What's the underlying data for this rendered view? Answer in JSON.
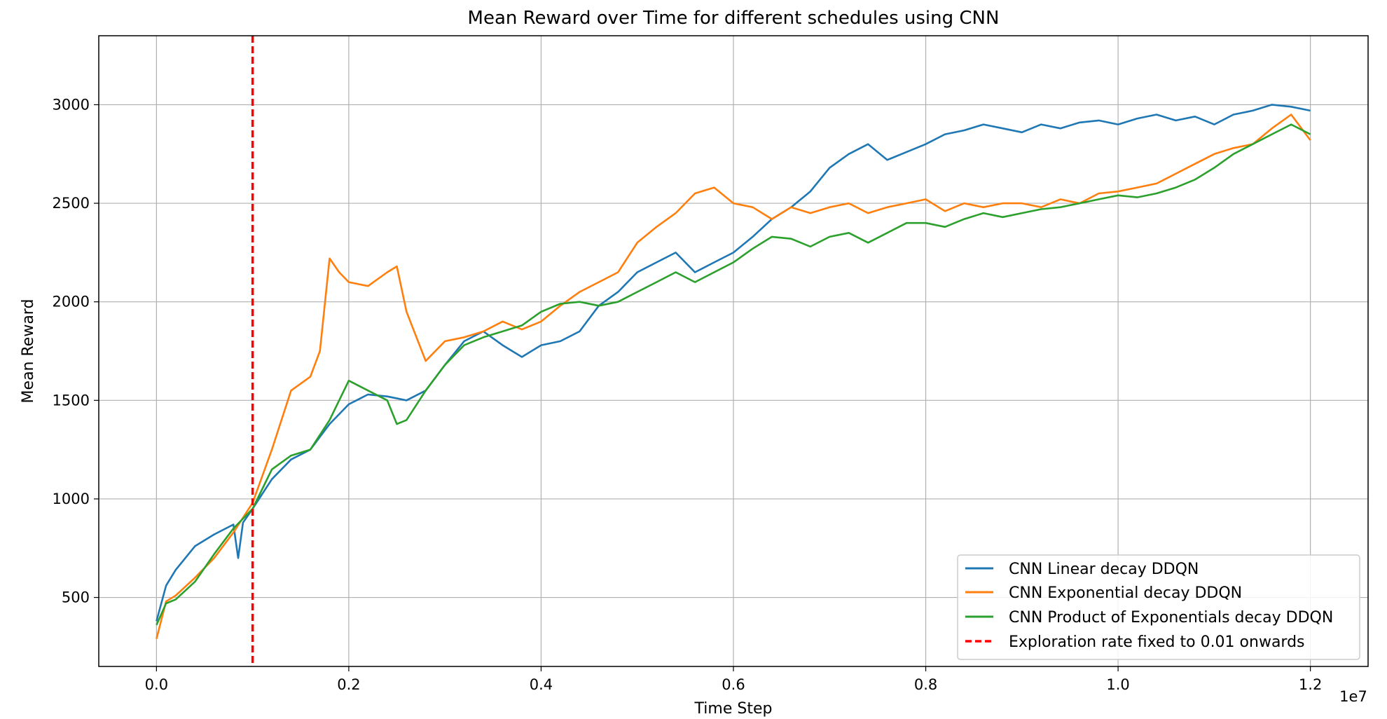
{
  "chart_data": {
    "type": "line",
    "title": "Mean Reward over Time for different schedules using CNN",
    "xlabel": "Time Step",
    "ylabel": "Mean Reward",
    "x_offset_label": "1e7",
    "xlim": [
      -0.06,
      1.26
    ],
    "ylim": [
      150,
      3350
    ],
    "x_ticks": [
      0.0,
      0.2,
      0.4,
      0.6,
      0.8,
      1.0,
      1.2
    ],
    "x_tick_labels": [
      "0.0",
      "0.2",
      "0.4",
      "0.6",
      "0.8",
      "1.0",
      "1.2"
    ],
    "y_ticks": [
      500,
      1000,
      1500,
      2000,
      2500,
      3000
    ],
    "y_tick_labels": [
      "500",
      "1000",
      "1500",
      "2000",
      "2500",
      "3000"
    ],
    "grid": true,
    "legend_position": "lower-right",
    "vline": {
      "x": 0.1,
      "label": "Exploration rate fixed to 0.01 onwards",
      "color": "#ff0000",
      "style": "dashed"
    },
    "series": [
      {
        "name": "CNN Linear decay DDQN",
        "color": "#1f77b4",
        "x": [
          0.0,
          0.01,
          0.02,
          0.04,
          0.06,
          0.08,
          0.085,
          0.09,
          0.1,
          0.12,
          0.14,
          0.16,
          0.18,
          0.2,
          0.22,
          0.24,
          0.26,
          0.28,
          0.3,
          0.32,
          0.34,
          0.36,
          0.38,
          0.4,
          0.42,
          0.44,
          0.46,
          0.48,
          0.5,
          0.52,
          0.54,
          0.56,
          0.58,
          0.6,
          0.62,
          0.64,
          0.66,
          0.68,
          0.7,
          0.72,
          0.74,
          0.76,
          0.78,
          0.8,
          0.82,
          0.84,
          0.86,
          0.88,
          0.9,
          0.92,
          0.94,
          0.96,
          0.98,
          1.0,
          1.02,
          1.04,
          1.06,
          1.08,
          1.1,
          1.12,
          1.14,
          1.16,
          1.18,
          1.2
        ],
        "y": [
          380,
          560,
          640,
          760,
          820,
          870,
          700,
          880,
          950,
          1100,
          1200,
          1250,
          1380,
          1480,
          1530,
          1520,
          1500,
          1550,
          1680,
          1800,
          1850,
          1780,
          1720,
          1780,
          1800,
          1850,
          1980,
          2050,
          2150,
          2200,
          2250,
          2150,
          2200,
          2250,
          2330,
          2420,
          2480,
          2560,
          2680,
          2750,
          2800,
          2720,
          2760,
          2800,
          2850,
          2870,
          2900,
          2880,
          2860,
          2900,
          2880,
          2910,
          2920,
          2900,
          2930,
          2950,
          2920,
          2940,
          2900,
          2950,
          2970,
          3000,
          2990,
          2970
        ]
      },
      {
        "name": "CNN Exponential decay DDQN",
        "color": "#ff7f0e",
        "x": [
          0.0,
          0.01,
          0.02,
          0.04,
          0.06,
          0.08,
          0.1,
          0.12,
          0.14,
          0.16,
          0.17,
          0.18,
          0.19,
          0.2,
          0.22,
          0.24,
          0.25,
          0.26,
          0.28,
          0.3,
          0.32,
          0.34,
          0.36,
          0.38,
          0.4,
          0.42,
          0.44,
          0.46,
          0.48,
          0.5,
          0.52,
          0.54,
          0.56,
          0.58,
          0.6,
          0.62,
          0.64,
          0.66,
          0.68,
          0.7,
          0.72,
          0.74,
          0.76,
          0.78,
          0.8,
          0.82,
          0.84,
          0.86,
          0.88,
          0.9,
          0.92,
          0.94,
          0.96,
          0.98,
          1.0,
          1.02,
          1.04,
          1.06,
          1.08,
          1.1,
          1.12,
          1.14,
          1.16,
          1.18,
          1.2
        ],
        "y": [
          290,
          480,
          510,
          600,
          700,
          830,
          980,
          1250,
          1550,
          1620,
          1750,
          2220,
          2150,
          2100,
          2080,
          2150,
          2180,
          1950,
          1700,
          1800,
          1820,
          1850,
          1900,
          1860,
          1900,
          1980,
          2050,
          2100,
          2150,
          2300,
          2380,
          2450,
          2550,
          2580,
          2500,
          2480,
          2420,
          2480,
          2450,
          2480,
          2500,
          2450,
          2480,
          2500,
          2520,
          2460,
          2500,
          2480,
          2500,
          2500,
          2480,
          2520,
          2500,
          2550,
          2560,
          2580,
          2600,
          2650,
          2700,
          2750,
          2780,
          2800,
          2880,
          2950,
          2820
        ]
      },
      {
        "name": "CNN Product of Exponentials decay DDQN",
        "color": "#2ca02c",
        "x": [
          0.0,
          0.01,
          0.02,
          0.04,
          0.06,
          0.08,
          0.1,
          0.12,
          0.14,
          0.16,
          0.18,
          0.2,
          0.22,
          0.24,
          0.25,
          0.26,
          0.28,
          0.3,
          0.32,
          0.34,
          0.36,
          0.38,
          0.4,
          0.42,
          0.44,
          0.46,
          0.48,
          0.5,
          0.52,
          0.54,
          0.56,
          0.58,
          0.6,
          0.62,
          0.64,
          0.66,
          0.68,
          0.7,
          0.72,
          0.74,
          0.76,
          0.78,
          0.8,
          0.82,
          0.84,
          0.86,
          0.88,
          0.9,
          0.92,
          0.94,
          0.96,
          0.98,
          1.0,
          1.02,
          1.04,
          1.06,
          1.08,
          1.1,
          1.12,
          1.14,
          1.16,
          1.18,
          1.2
        ],
        "y": [
          360,
          470,
          490,
          580,
          720,
          850,
          950,
          1150,
          1220,
          1250,
          1400,
          1600,
          1550,
          1500,
          1380,
          1400,
          1550,
          1680,
          1780,
          1820,
          1850,
          1880,
          1950,
          1990,
          2000,
          1980,
          2000,
          2050,
          2100,
          2150,
          2100,
          2150,
          2200,
          2270,
          2330,
          2320,
          2280,
          2330,
          2350,
          2300,
          2350,
          2400,
          2400,
          2380,
          2420,
          2450,
          2430,
          2450,
          2470,
          2480,
          2500,
          2520,
          2540,
          2530,
          2550,
          2580,
          2620,
          2680,
          2750,
          2800,
          2850,
          2900,
          2850
        ]
      }
    ]
  }
}
